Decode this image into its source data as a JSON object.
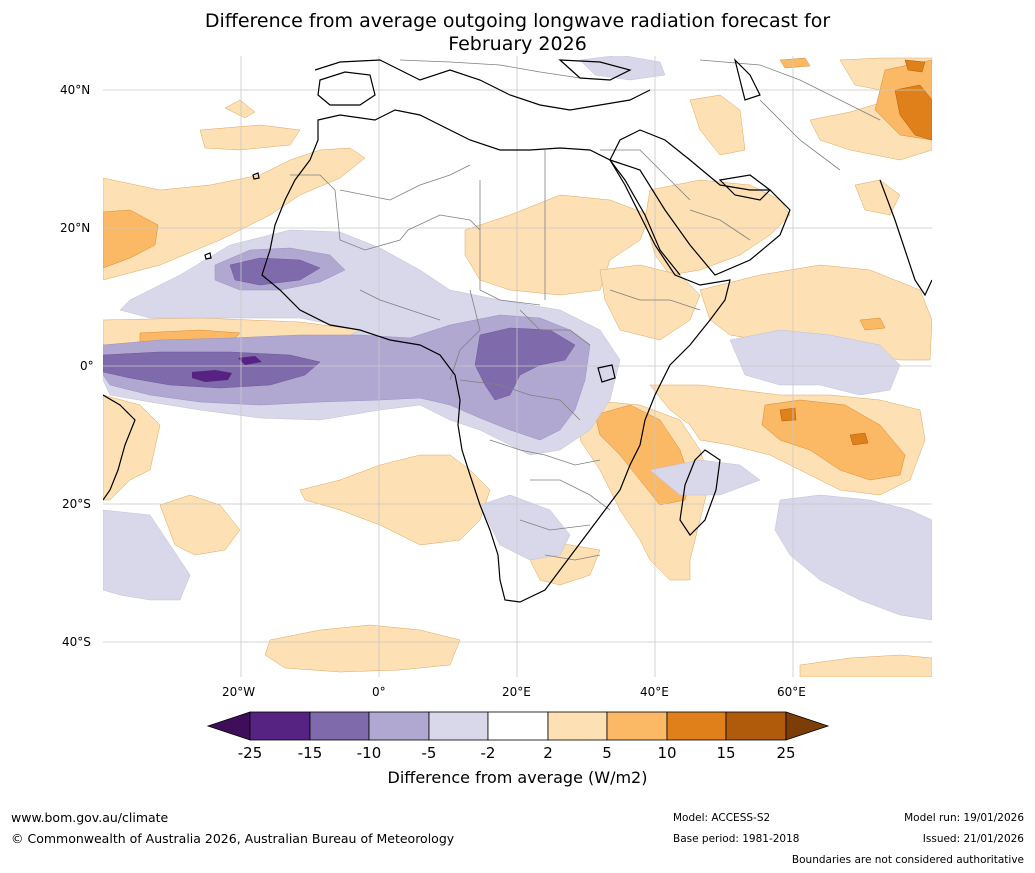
{
  "title": {
    "line1": "Difference from average outgoing longwave radiation forecast for",
    "line2": "February 2026"
  },
  "map": {
    "lat_labels": [
      "40°N",
      "20°N",
      "0°",
      "20°S",
      "40°S"
    ],
    "lon_labels": [
      "20°W",
      "0°",
      "20°E",
      "40°E",
      "60°E"
    ]
  },
  "colorbar": {
    "ticks": [
      "-25",
      "-15",
      "-10",
      "-5",
      "-2",
      "2",
      "5",
      "10",
      "15",
      "25"
    ],
    "colors": [
      "#3f0e5a",
      "#562382",
      "#7f6bab",
      "#b1a8d2",
      "#d8d8ea",
      "#ffffff",
      "#fde0b3",
      "#fbb966",
      "#e0801a",
      "#b05a0c",
      "#7c3d06"
    ],
    "label": "Difference from average (W/m2)"
  },
  "footer": {
    "website": "www.bom.gov.au/climate",
    "copyright": "© Commonwealth of Australia 2026, Australian Bureau of Meteorology",
    "model": "Model: ACCESS-S2",
    "base_period": "Base period: 1981-2018",
    "model_run": "Model run: 19/01/2026",
    "issued": "Issued: 21/01/2026",
    "disclaimer": "Boundaries are not considered authoritative"
  }
}
